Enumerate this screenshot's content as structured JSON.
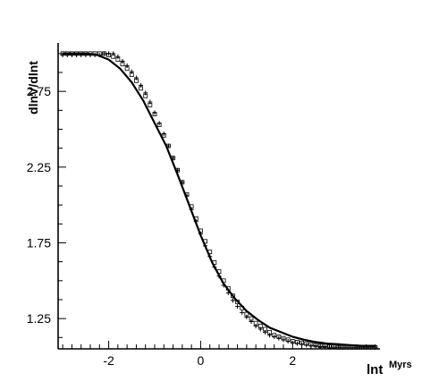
{
  "chart_data": {
    "type": "line",
    "title": "",
    "xlabel": "lnt",
    "xlabel_unit": "Myrs",
    "ylabel": "dlnV/dlnt",
    "xlim": [
      -3.1,
      3.9
    ],
    "ylim": [
      1.05,
      3.07
    ],
    "x_ticks": [
      -2,
      0,
      2
    ],
    "x_tick_labels": [
      "-2",
      "0",
      "2"
    ],
    "y_ticks": [
      1.25,
      1.75,
      2.25,
      2.75
    ],
    "y_tick_labels": [
      "1.25",
      "1.75",
      "2.25",
      "2.75"
    ],
    "grid": false,
    "legend": "none",
    "series": [
      {
        "style": "solid-line",
        "color": "#000000",
        "x": [
          -3.0,
          -2.5,
          -2.25,
          -2.0,
          -1.75,
          -1.5,
          -1.25,
          -1.0,
          -0.75,
          -0.5,
          -0.25,
          0.0,
          0.25,
          0.5,
          0.75,
          1.0,
          1.25,
          1.5,
          1.75,
          2.0,
          2.25,
          2.5,
          2.75,
          3.0,
          3.25,
          3.5,
          3.8
        ],
        "y": [
          3.0,
          3.0,
          2.99,
          2.96,
          2.9,
          2.81,
          2.69,
          2.54,
          2.39,
          2.2,
          2.0,
          1.8,
          1.62,
          1.48,
          1.38,
          1.3,
          1.24,
          1.19,
          1.16,
          1.13,
          1.11,
          1.095,
          1.085,
          1.08,
          1.075,
          1.07,
          1.07
        ]
      },
      {
        "style": "plus-markers",
        "color": "#000000",
        "x": [
          -3.0,
          -2.9,
          -2.8,
          -2.7,
          -2.6,
          -2.5,
          -2.4,
          -2.3,
          -2.2,
          -2.1,
          -2.0,
          -1.9,
          -1.8,
          -1.7,
          -1.6,
          -1.5,
          -1.4,
          -1.3,
          -1.2,
          -1.1,
          -1.0,
          -0.9,
          -0.8,
          -0.7,
          -0.6,
          -0.5,
          -0.4,
          -0.3,
          -0.2,
          -0.1,
          0.0,
          0.1,
          0.2,
          0.3,
          0.4,
          0.5,
          0.6,
          0.7,
          0.8,
          0.9,
          1.0,
          1.1,
          1.2,
          1.3,
          1.4,
          1.5,
          1.6,
          1.7,
          1.8,
          1.9,
          2.0,
          2.1,
          2.2,
          2.3,
          2.4,
          2.5,
          2.6,
          2.7,
          2.8,
          2.9,
          3.0,
          3.1,
          3.2,
          3.3,
          3.4,
          3.5,
          3.6,
          3.7,
          3.8
        ],
        "y": [
          2.99,
          2.99,
          2.99,
          2.99,
          2.99,
          2.99,
          2.99,
          2.99,
          2.99,
          3.0,
          3.0,
          3.0,
          2.98,
          2.95,
          2.92,
          2.88,
          2.84,
          2.79,
          2.74,
          2.68,
          2.61,
          2.54,
          2.47,
          2.39,
          2.31,
          2.23,
          2.15,
          2.06,
          1.97,
          1.89,
          1.81,
          1.73,
          1.66,
          1.59,
          1.53,
          1.47,
          1.42,
          1.37,
          1.33,
          1.29,
          1.26,
          1.23,
          1.2,
          1.18,
          1.16,
          1.14,
          1.13,
          1.12,
          1.11,
          1.1,
          1.09,
          1.085,
          1.08,
          1.075,
          1.07,
          1.07,
          1.065,
          1.065,
          1.06,
          1.06,
          1.06,
          1.06,
          1.06,
          1.06,
          1.06,
          1.06,
          1.06,
          1.06,
          1.06
        ]
      },
      {
        "style": "square-markers",
        "color": "#000000",
        "x": [
          -3.0,
          -2.9,
          -2.8,
          -2.7,
          -2.6,
          -2.5,
          -2.4,
          -2.3,
          -2.2,
          -2.1,
          -2.0,
          -1.9,
          -1.8,
          -1.7,
          -1.6,
          -1.5,
          -1.4,
          -1.3,
          -1.2,
          -1.1,
          -1.0,
          -0.9,
          -0.8,
          -0.7,
          -0.6,
          -0.5,
          -0.4,
          -0.3,
          -0.2,
          -0.1,
          0.0,
          0.1,
          0.2,
          0.3,
          0.4,
          0.5,
          0.6,
          0.7,
          0.8,
          0.9,
          1.0,
          1.1,
          1.2,
          1.3,
          1.4,
          1.5,
          1.6,
          1.7,
          1.8,
          1.9,
          2.0,
          2.1,
          2.2,
          2.3,
          2.4,
          2.5,
          2.6,
          2.7,
          2.8,
          2.9,
          3.0,
          3.1,
          3.2,
          3.3,
          3.4,
          3.5,
          3.6,
          3.7,
          3.8
        ],
        "y": [
          3.0,
          3.0,
          3.0,
          3.0,
          3.0,
          3.0,
          3.0,
          3.0,
          3.0,
          3.0,
          2.99,
          2.98,
          2.96,
          2.93,
          2.9,
          2.86,
          2.82,
          2.77,
          2.72,
          2.66,
          2.6,
          2.53,
          2.46,
          2.39,
          2.31,
          2.23,
          2.15,
          2.07,
          1.99,
          1.91,
          1.83,
          1.76,
          1.69,
          1.62,
          1.56,
          1.5,
          1.45,
          1.4,
          1.36,
          1.32,
          1.28,
          1.25,
          1.22,
          1.2,
          1.18,
          1.16,
          1.14,
          1.13,
          1.12,
          1.11,
          1.1,
          1.095,
          1.09,
          1.085,
          1.08,
          1.075,
          1.07,
          1.07,
          1.065,
          1.065,
          1.06,
          1.06,
          1.06,
          1.06,
          1.06,
          1.06,
          1.06,
          1.06,
          1.06
        ]
      }
    ]
  }
}
